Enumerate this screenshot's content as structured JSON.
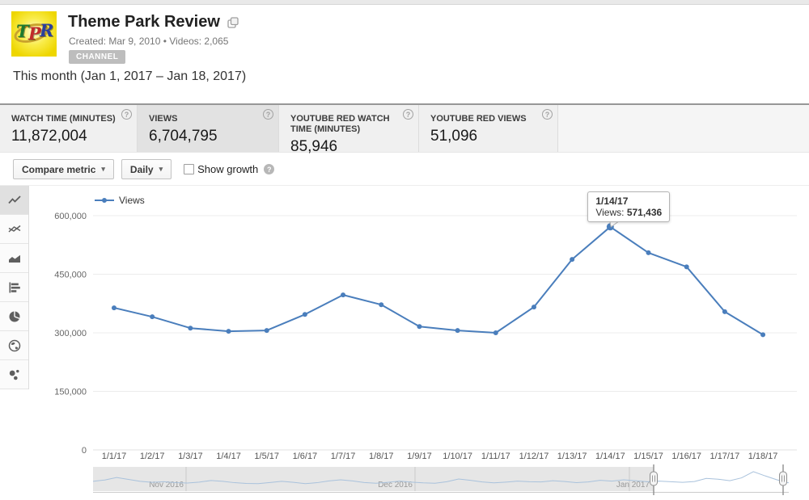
{
  "icons": {
    "help": "?",
    "caret_down": "▾"
  },
  "header": {
    "channel_name": "Theme Park Review",
    "logo_letters": [
      "T",
      "P",
      "R"
    ],
    "meta": "Created: Mar 9, 2010 • Videos: 2,065",
    "badge": "CHANNEL",
    "period": "This month (Jan 1, 2017 – Jan 18, 2017)"
  },
  "metrics": {
    "tabs": [
      {
        "label": "WATCH TIME (MINUTES)",
        "value": "11,872,004",
        "selected": false
      },
      {
        "label": "VIEWS",
        "value": "6,704,795",
        "selected": true
      },
      {
        "label": "YOUTUBE RED WATCH TIME (MINUTES)",
        "value": "85,946",
        "selected": false
      },
      {
        "label": "YOUTUBE RED VIEWS",
        "value": "51,096",
        "selected": false
      }
    ]
  },
  "controls": {
    "compare_metric": "Compare metric",
    "interval": "Daily",
    "show_growth": "Show growth",
    "show_growth_checked": false
  },
  "chart_data": {
    "type": "line",
    "title": "",
    "xlabel": "",
    "ylabel": "",
    "grid": true,
    "legend_position": "top-left",
    "ylim": [
      0,
      650000
    ],
    "y_ticks": [
      0,
      150000,
      300000,
      450000,
      600000
    ],
    "y_tick_labels": [
      "0",
      "150,000",
      "300,000",
      "450,000",
      "600,000"
    ],
    "x_labels": [
      "1/1/17",
      "1/2/17",
      "1/3/17",
      "1/4/17",
      "1/5/17",
      "1/6/17",
      "1/7/17",
      "1/8/17",
      "1/9/17",
      "1/10/17",
      "1/11/17",
      "1/12/17",
      "1/13/17",
      "1/14/17",
      "1/15/17",
      "1/16/17",
      "1/17/17",
      "1/18/17"
    ],
    "series": [
      {
        "name": "Views",
        "color": "#4a7ebc",
        "values": [
          364000,
          341000,
          312000,
          304000,
          306000,
          347000,
          397000,
          372000,
          316000,
          306000,
          300000,
          366000,
          488000,
          571436,
          505000,
          469000,
          354000,
          295000
        ]
      }
    ],
    "tooltip": {
      "date": "1/14/17",
      "series_label": "Views:",
      "value": "571,436",
      "point_index": 13
    },
    "navigator": {
      "color": "#a9c2dc",
      "month_labels": [
        "Nov 2016",
        "Dec 2016",
        "Jan 2017"
      ],
      "values": [
        0.38,
        0.45,
        0.58,
        0.48,
        0.38,
        0.33,
        0.36,
        0.31,
        0.29,
        0.34,
        0.42,
        0.38,
        0.31,
        0.27,
        0.26,
        0.32,
        0.38,
        0.33,
        0.26,
        0.31,
        0.4,
        0.46,
        0.4,
        0.32,
        0.28,
        0.33,
        0.39,
        0.34,
        0.3,
        0.28,
        0.36,
        0.5,
        0.43,
        0.35,
        0.3,
        0.34,
        0.39,
        0.36,
        0.35,
        0.41,
        0.37,
        0.31,
        0.35,
        0.43,
        0.39,
        0.46,
        0.41,
        0.36,
        0.39,
        0.36,
        0.33,
        0.37,
        0.53,
        0.49,
        0.41,
        0.56,
        0.88,
        0.66,
        0.46,
        0.3
      ]
    }
  }
}
